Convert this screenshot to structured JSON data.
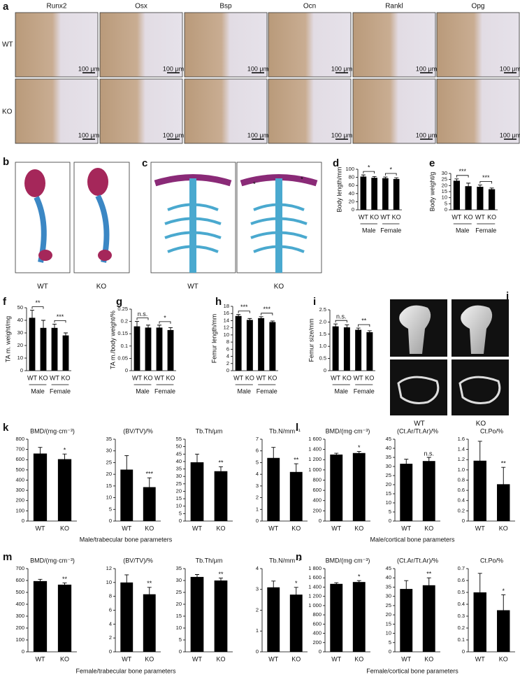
{
  "panel_labels": [
    "a",
    "b",
    "c",
    "d",
    "e",
    "f",
    "g",
    "h",
    "i",
    "j",
    "k",
    "l",
    "m",
    "n"
  ],
  "histology": {
    "columns": [
      "Runx2",
      "Osx",
      "Bsp",
      "Ocn",
      "Rankl",
      "Opg"
    ],
    "rows": [
      "WT",
      "KO"
    ],
    "scale_bar": "100 μm"
  },
  "skeleton_b": {
    "labels": [
      "WT",
      "KO"
    ]
  },
  "skeleton_c": {
    "labels": [
      "WT",
      "KO"
    ],
    "markers": [
      "*",
      "*"
    ]
  },
  "microct_j": {
    "labels": [
      "WT",
      "KO"
    ]
  },
  "captions": [
    "Male/trabecular bone parameters",
    "Male/cortical bone parameters",
    "Female/trabecular bone parameters",
    "Female/cortical bone parameters"
  ],
  "chart_data": [
    {
      "type": "bar",
      "ylabel": "Body length/mm",
      "categories": [
        "WT",
        "KO",
        "WT",
        "KO"
      ],
      "groups": [
        "Male",
        "Female"
      ],
      "values": [
        82,
        79,
        78,
        76
      ],
      "errors": [
        4,
        3,
        3,
        3
      ],
      "significance": [
        "*",
        "*"
      ],
      "color": "#000000",
      "ylim": [
        0,
        100
      ],
      "yticks": [
        0,
        20,
        40,
        60,
        80,
        100
      ]
    },
    {
      "type": "bar",
      "ylabel": "Body weight/g",
      "categories": [
        "WT",
        "KO",
        "WT",
        "KO"
      ],
      "groups": [
        "Male",
        "Female"
      ],
      "values": [
        24,
        19.5,
        19,
        17
      ],
      "errors": [
        1.5,
        2.5,
        1.5,
        1
      ],
      "significance": [
        "***",
        "***"
      ],
      "color": "#000000",
      "ylim": [
        0,
        30
      ],
      "yticks": [
        0,
        5,
        10,
        15,
        20,
        25,
        30
      ]
    },
    {
      "type": "bar",
      "ylabel": "TA m. weight/mg",
      "categories": [
        "WT",
        "KO",
        "WT",
        "KO"
      ],
      "groups": [
        "Male",
        "Female"
      ],
      "values": [
        42,
        34,
        34,
        28
      ],
      "errors": [
        6,
        6,
        3,
        2
      ],
      "significance": [
        "**",
        "***"
      ],
      "color": "#000000",
      "ylim": [
        0,
        50
      ],
      "yticks": [
        0,
        10,
        20,
        30,
        40,
        50
      ]
    },
    {
      "type": "bar",
      "ylabel": "TA m./body weight/%",
      "categories": [
        "WT",
        "KO",
        "WT",
        "KO"
      ],
      "groups": [
        "Male",
        "Female"
      ],
      "values": [
        0.18,
        0.175,
        0.175,
        0.165
      ],
      "errors": [
        0.02,
        0.01,
        0.01,
        0.01
      ],
      "significance": [
        "n.s.",
        "*"
      ],
      "color": "#000000",
      "ylim": [
        0,
        0.25
      ],
      "yticks": [
        0,
        0.05,
        0.1,
        0.15,
        0.2,
        0.25
      ]
    },
    {
      "type": "bar",
      "ylabel": "Femur length/mm",
      "categories": [
        "WT",
        "KO",
        "WT",
        "KO"
      ],
      "groups": [
        "Male",
        "Female"
      ],
      "values": [
        15.3,
        14.2,
        14.7,
        13.6
      ],
      "errors": [
        0.4,
        0.4,
        0.4,
        0.3
      ],
      "significance": [
        "***",
        "***"
      ],
      "color": "#000000",
      "ylim": [
        0,
        18
      ],
      "yticks": [
        0,
        2,
        4,
        6,
        8,
        10,
        12,
        14,
        16,
        18
      ]
    },
    {
      "type": "bar",
      "ylabel": "Femur size/mm",
      "categories": [
        "WT",
        "KO",
        "WT",
        "KO"
      ],
      "groups": [
        "Male",
        "Female"
      ],
      "values": [
        1.82,
        1.78,
        1.68,
        1.58
      ],
      "errors": [
        0.1,
        0.1,
        0.07,
        0.06
      ],
      "significance": [
        "n.s.",
        "**"
      ],
      "color": "#000000",
      "ylim": [
        0,
        2.5
      ],
      "yticks": [
        0,
        0.5,
        {
          "value": 1,
          "label": "1.0"
        },
        1.5,
        {
          "value": 2,
          "label": "2.0"
        },
        2.5
      ]
    },
    {
      "type": "bar",
      "title": "BMD/(mg·cm⁻³)",
      "categories": [
        "WT",
        "KO"
      ],
      "values": [
        660,
        605
      ],
      "errors": [
        60,
        50
      ],
      "significance": [
        "*"
      ],
      "color": "#000000",
      "ylim": [
        0,
        800
      ],
      "yticks": [
        0,
        100,
        200,
        300,
        400,
        500,
        600,
        700,
        800
      ]
    },
    {
      "type": "bar",
      "title": "(BV/TV)/%",
      "categories": [
        "WT",
        "KO"
      ],
      "values": [
        22,
        14.5
      ],
      "errors": [
        6,
        4
      ],
      "significance": [
        "***"
      ],
      "color": "#000000",
      "ylim": [
        0,
        35
      ],
      "yticks": [
        0,
        5,
        10,
        15,
        20,
        25,
        30,
        35
      ]
    },
    {
      "type": "bar",
      "title": "Tb.Th/μm",
      "categories": [
        "WT",
        "KO"
      ],
      "values": [
        39.5,
        33.5
      ],
      "errors": [
        5.5,
        3
      ],
      "significance": [
        "**"
      ],
      "color": "#000000",
      "ylim": [
        0,
        55
      ],
      "yticks": [
        0,
        5,
        10,
        15,
        20,
        25,
        30,
        35,
        40,
        45,
        50,
        55
      ]
    },
    {
      "type": "bar",
      "title": "Tb.N/mm⁻¹",
      "categories": [
        "WT",
        "KO"
      ],
      "values": [
        5.4,
        4.2
      ],
      "errors": [
        0.9,
        0.7
      ],
      "significance": [
        "**"
      ],
      "color": "#000000",
      "ylim": [
        0,
        7
      ],
      "yticks": [
        0,
        1,
        2,
        3,
        4,
        5,
        6,
        7
      ]
    },
    {
      "type": "bar",
      "title": "BMD/(mg·cm⁻³)",
      "categories": [
        "WT",
        "KO"
      ],
      "values": [
        1300,
        1330
      ],
      "errors": [
        25,
        30
      ],
      "significance": [
        "*"
      ],
      "color": "#000000",
      "ylim": [
        0,
        1600
      ],
      "yticks": [
        0,
        200,
        400,
        600,
        800,
        {
          "value": 1000,
          "label": "1 000"
        },
        {
          "value": 1200,
          "label": "1 200"
        },
        {
          "value": 1400,
          "label": "1 400"
        },
        {
          "value": 1600,
          "label": "1 600"
        }
      ]
    },
    {
      "type": "bar",
      "title": "(Ct.Ar/Tt.Ar)/%",
      "categories": [
        "WT",
        "KO"
      ],
      "values": [
        31.5,
        33
      ],
      "errors": [
        2.5,
        2
      ],
      "significance": [
        "n.s."
      ],
      "color": "#000000",
      "ylim": [
        0,
        45
      ],
      "yticks": [
        0,
        5,
        10,
        15,
        20,
        25,
        30,
        35,
        40,
        45
      ]
    },
    {
      "type": "bar",
      "title": "Ct.Po/%",
      "categories": [
        "WT",
        "KO"
      ],
      "values": [
        1.18,
        0.72
      ],
      "errors": [
        0.38,
        0.33
      ],
      "significance": [
        "**"
      ],
      "color": "#000000",
      "ylim": [
        0,
        1.6
      ],
      "yticks": [
        0,
        0.2,
        0.4,
        0.6,
        0.8,
        {
          "value": 1,
          "label": "1.0"
        },
        1.2,
        1.4,
        1.6
      ]
    },
    {
      "type": "bar",
      "title": "BMD/(mg·cm⁻³)",
      "categories": [
        "WT",
        "KO"
      ],
      "values": [
        595,
        565
      ],
      "errors": [
        15,
        15
      ],
      "significance": [
        "**"
      ],
      "color": "#000000",
      "ylim": [
        0,
        700
      ],
      "yticks": [
        0,
        100,
        200,
        300,
        400,
        500,
        600,
        700
      ]
    },
    {
      "type": "bar",
      "title": "(BV/TV)/%",
      "categories": [
        "WT",
        "KO"
      ],
      "values": [
        10,
        8.3
      ],
      "errors": [
        1.1,
        1
      ],
      "significance": [
        "**"
      ],
      "color": "#000000",
      "ylim": [
        0,
        12
      ],
      "yticks": [
        0,
        2,
        4,
        6,
        8,
        10,
        12
      ]
    },
    {
      "type": "bar",
      "title": "Tb.Th/μm",
      "categories": [
        "WT",
        "KO"
      ],
      "values": [
        31.5,
        30
      ],
      "errors": [
        1,
        1
      ],
      "significance": [
        "**"
      ],
      "color": "#000000",
      "ylim": [
        0,
        35
      ],
      "yticks": [
        0,
        5,
        10,
        15,
        20,
        25,
        30,
        35
      ]
    },
    {
      "type": "bar",
      "title": "Tb.N/mm⁻¹",
      "categories": [
        "WT",
        "KO"
      ],
      "values": [
        3.1,
        2.75
      ],
      "errors": [
        0.3,
        0.35
      ],
      "significance": [
        "*"
      ],
      "color": "#000000",
      "ylim": [
        0,
        4
      ],
      "yticks": [
        0,
        1,
        2,
        3,
        4
      ]
    },
    {
      "type": "bar",
      "title": "BMD/(mg·cm⁻³)",
      "categories": [
        "WT",
        "KO"
      ],
      "values": [
        1470,
        1510
      ],
      "errors": [
        25,
        30
      ],
      "significance": [
        "*"
      ],
      "color": "#000000",
      "ylim": [
        0,
        1800
      ],
      "yticks": [
        0,
        200,
        400,
        600,
        800,
        {
          "value": 1000,
          "label": "1 000"
        },
        {
          "value": 1200,
          "label": "1 200"
        },
        {
          "value": 1400,
          "label": "1 400"
        },
        {
          "value": 1600,
          "label": "1 600"
        },
        {
          "value": 1800,
          "label": "1 800"
        }
      ]
    },
    {
      "type": "bar",
      "title": "(Ct.Ar/Tt.Ar)/%",
      "categories": [
        "WT",
        "KO"
      ],
      "values": [
        34,
        36
      ],
      "errors": [
        4.5,
        4
      ],
      "significance": [
        "**"
      ],
      "color": "#000000",
      "ylim": [
        0,
        45
      ],
      "yticks": [
        0,
        5,
        10,
        15,
        20,
        25,
        30,
        35,
        40,
        45
      ]
    },
    {
      "type": "bar",
      "title": "Ct.Po/%",
      "categories": [
        "WT",
        "KO"
      ],
      "values": [
        0.5,
        0.35
      ],
      "errors": [
        0.16,
        0.13
      ],
      "significance": [
        "*"
      ],
      "color": "#000000",
      "ylim": [
        0,
        0.7
      ],
      "yticks": [
        0,
        0.1,
        0.2,
        0.3,
        0.4,
        0.5,
        0.6,
        0.7
      ]
    }
  ]
}
